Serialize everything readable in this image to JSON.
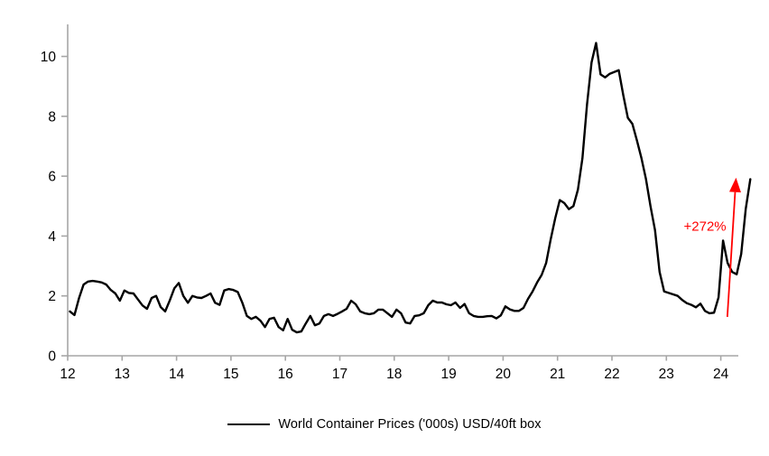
{
  "page": {
    "background": "#ffffff"
  },
  "legend": {
    "label": "World Container Prices ('000s) USD/40ft box",
    "swatch_color": "#000000"
  },
  "chart_data": {
    "type": "line",
    "title": "",
    "xlabel": "",
    "ylabel": "",
    "grid": false,
    "legend_position": "bottom-center",
    "axis_color": "#a6a6a6",
    "x_axis": {
      "ticks": [
        12,
        13,
        14,
        15,
        16,
        17,
        18,
        19,
        20,
        21,
        22,
        23,
        24
      ],
      "range": [
        11.96,
        24.35
      ]
    },
    "y_axis": {
      "ticks": [
        0,
        2,
        4,
        6,
        8,
        10
      ],
      "range": [
        0,
        11.07
      ]
    },
    "series": [
      {
        "name": "World Container Prices ('000s) USD/40ft box",
        "color": "#000000",
        "x_start": 12.0417,
        "x_step": 0.083333,
        "values": [
          1.48,
          1.36,
          1.93,
          2.38,
          2.48,
          2.5,
          2.48,
          2.45,
          2.38,
          2.2,
          2.08,
          1.84,
          2.18,
          2.1,
          2.08,
          1.88,
          1.68,
          1.57,
          1.93,
          2.0,
          1.63,
          1.48,
          1.85,
          2.25,
          2.43,
          2.0,
          1.77,
          2.0,
          1.95,
          1.93,
          2.0,
          2.08,
          1.77,
          1.7,
          2.18,
          2.23,
          2.2,
          2.13,
          1.77,
          1.33,
          1.23,
          1.3,
          1.17,
          0.96,
          1.23,
          1.27,
          0.96,
          0.85,
          1.23,
          0.87,
          0.78,
          0.81,
          1.08,
          1.33,
          1.02,
          1.08,
          1.33,
          1.39,
          1.33,
          1.4,
          1.48,
          1.57,
          1.84,
          1.72,
          1.48,
          1.42,
          1.39,
          1.42,
          1.54,
          1.54,
          1.42,
          1.3,
          1.54,
          1.42,
          1.11,
          1.08,
          1.33,
          1.35,
          1.42,
          1.69,
          1.84,
          1.78,
          1.78,
          1.72,
          1.69,
          1.78,
          1.6,
          1.73,
          1.42,
          1.33,
          1.3,
          1.3,
          1.32,
          1.33,
          1.25,
          1.35,
          1.65,
          1.55,
          1.5,
          1.5,
          1.6,
          1.9,
          2.15,
          2.45,
          2.7,
          3.1,
          3.9,
          4.6,
          5.2,
          5.1,
          4.9,
          5.0,
          5.55,
          6.6,
          8.4,
          9.8,
          10.45,
          9.4,
          9.3,
          9.42,
          9.48,
          9.54,
          8.7,
          7.95,
          7.75,
          7.2,
          6.6,
          5.9,
          5.0,
          4.2,
          2.8,
          2.15,
          2.1,
          2.05,
          2.0,
          1.86,
          1.76,
          1.7,
          1.62,
          1.74,
          1.5,
          1.42,
          1.44,
          1.95,
          3.85,
          3.1,
          2.8,
          2.72,
          3.4,
          4.9,
          5.9
        ]
      }
    ],
    "annotation": {
      "label": "+272%",
      "color": "#ff0000",
      "arrow": {
        "from": {
          "x": 24.12,
          "y": 1.3
        },
        "to": {
          "x": 24.28,
          "y": 5.95
        }
      },
      "label_anchor": {
        "x": 24.1,
        "y": 4.33
      }
    }
  }
}
